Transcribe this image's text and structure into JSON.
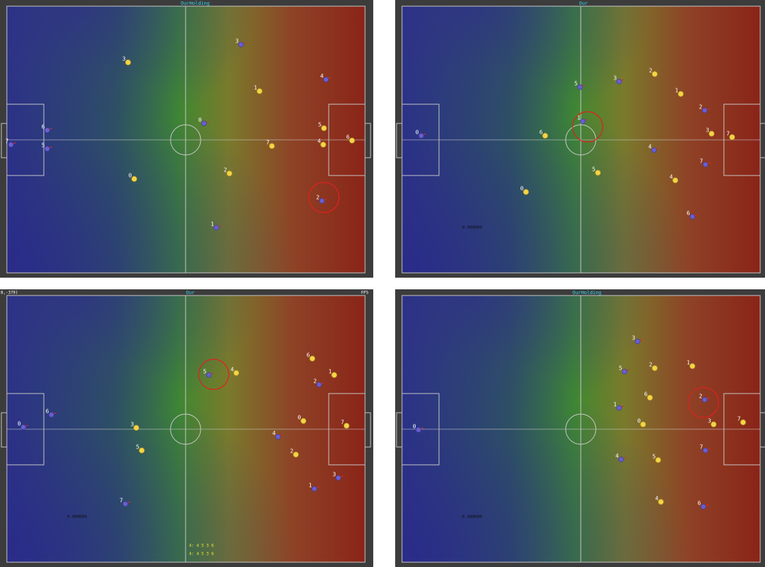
{
  "panels": [
    {
      "status": "OurHolding",
      "yellow_players": [
        "3",
        "1",
        "0",
        "2",
        "7",
        "5",
        "4",
        "6"
      ],
      "blue_players": [
        "3",
        "4",
        "0",
        "6",
        "5",
        "7",
        "2",
        "1"
      ]
    },
    {
      "status": "Our",
      "yellow_players": [
        "2",
        "1",
        "6",
        "5",
        "3",
        "7",
        "0",
        "4"
      ],
      "blue_players": [
        "5",
        "3",
        "1",
        "2",
        "0",
        "4",
        "7",
        "6"
      ],
      "value_text": "0.000000"
    },
    {
      "status": "Our",
      "coordinates": "8,-379)",
      "fps": "FPS",
      "yellow_players": [
        "6",
        "4",
        "1",
        "0",
        "7",
        "3",
        "5",
        "2"
      ],
      "blue_players": [
        "5",
        "2",
        "0",
        "6",
        "4",
        "3",
        "1",
        "7"
      ],
      "value_text": "0.000000",
      "debug_lines": [
        "4: 4 5 3 6",
        "4: 4 5 3 6"
      ]
    },
    {
      "status": "OurHolding",
      "yellow_players": [
        "1",
        "2",
        "6",
        "0",
        "3",
        "7",
        "5",
        "4"
      ],
      "blue_players": [
        "3",
        "5",
        "1",
        "2",
        "0",
        "4",
        "7",
        "6"
      ],
      "value_text": "0.000000"
    }
  ]
}
